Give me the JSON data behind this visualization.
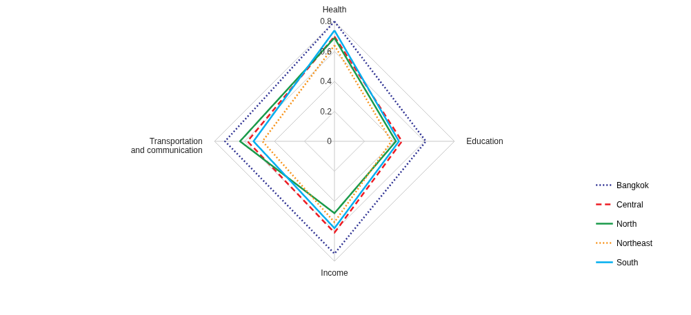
{
  "chart_data": {
    "type": "radar",
    "categories": [
      "Health",
      "Education",
      "Income",
      "Transportation\nand communication"
    ],
    "ylim": [
      0,
      0.8
    ],
    "yticks": [
      0,
      0.2,
      0.4,
      0.6,
      0.8
    ],
    "grid": true,
    "legend": "bottom right",
    "series": [
      {
        "name": "Bangkok",
        "color": "#2e3192",
        "line_style": "dotted",
        "values": [
          0.8,
          0.61,
          0.75,
          0.73
        ]
      },
      {
        "name": "Central",
        "color": "#ed1c24",
        "line_style": "dashed",
        "values": [
          0.7,
          0.45,
          0.61,
          0.58
        ]
      },
      {
        "name": "North",
        "color": "#1a9a4a",
        "line_style": "solid",
        "values": [
          0.69,
          0.41,
          0.48,
          0.63
        ]
      },
      {
        "name": "Northeast",
        "color": "#f7941d",
        "line_style": "dotted",
        "values": [
          0.64,
          0.38,
          0.54,
          0.48
        ]
      },
      {
        "name": "South",
        "color": "#00aeef",
        "line_style": "solid",
        "values": [
          0.74,
          0.43,
          0.58,
          0.54
        ]
      }
    ]
  }
}
